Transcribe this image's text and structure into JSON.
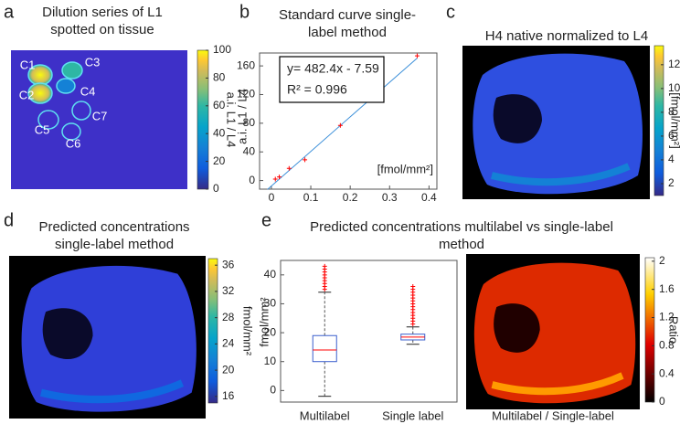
{
  "chart_data": [
    {
      "type": "image",
      "letter": "a",
      "title": [
        "Dilution series of L1",
        "spotted on tissue"
      ],
      "spot_labels": [
        "C1",
        "C3",
        "C4",
        "C2",
        "C7",
        "C5",
        "C6"
      ],
      "colorbar": {
        "colormap": "parula",
        "lim": [
          0,
          100
        ],
        "ticks": [
          0,
          20,
          40,
          60,
          80,
          100
        ],
        "label": "a.i. L1 / L4"
      }
    },
    {
      "type": "scatter",
      "letter": "b",
      "title": [
        "Standard curve single-",
        "label method"
      ],
      "x": [
        0.01,
        0.02,
        0.045,
        0.085,
        0.175,
        0.37
      ],
      "values": [
        2,
        5,
        17,
        29,
        77,
        174
      ],
      "color": "#ff0000",
      "fit_x": [
        -0.01,
        0.37
      ],
      "fit_y": [
        -12.4,
        170.9
      ],
      "fit_color": "#3b8fd9",
      "equation": "y= 482.4x - 7.59",
      "r2": "R² = 0.996",
      "ylabel": "a.i. L1 / L4",
      "xlabel": "[fmol/mm²]",
      "xlim": [
        -0.03,
        0.42
      ],
      "xticks": [
        0,
        0.1,
        0.2,
        0.3,
        0.4
      ],
      "ylim": [
        -12,
        178
      ],
      "yticks": [
        0,
        40,
        80,
        120,
        160
      ]
    },
    {
      "type": "image",
      "letter": "c",
      "title": [
        "H4 native normalized to L4"
      ],
      "colorbar": {
        "colormap": "parula",
        "lim": [
          1,
          13.6
        ],
        "ticks": [
          2,
          4,
          6,
          8,
          10,
          12
        ],
        "label": "[fmol/mm²]"
      }
    },
    {
      "type": "image",
      "letter": "d",
      "title": [
        "Predicted concentrations",
        "single-label method"
      ],
      "colorbar": {
        "colormap": "parula",
        "lim": [
          15,
          37
        ],
        "ticks": [
          16,
          20,
          24,
          28,
          32,
          36
        ],
        "label": "fmol/mm²"
      }
    },
    {
      "type": "boxplot",
      "letter": "e",
      "title": [
        "Predicted concentrations multilabel vs single-label",
        "method"
      ],
      "categories": [
        "Multilabel",
        "Single label"
      ],
      "ylabel": "fmol/mm²",
      "ylim": [
        -4,
        45
      ],
      "yticks": [
        0,
        10,
        20,
        30,
        40
      ],
      "box_color": "#3a5fcd",
      "median_color": "#ff0000",
      "boxes": [
        {
          "whislo": -2,
          "q1": 10,
          "med": 14,
          "q3": 19,
          "whishi": 34,
          "fliers": [
            35,
            36,
            37,
            38,
            39,
            40,
            41,
            42,
            43
          ]
        },
        {
          "whislo": 16,
          "q1": 17.5,
          "med": 18.5,
          "q3": 19.5,
          "whishi": 22,
          "fliers": [
            23,
            24,
            25,
            26,
            27,
            28,
            29,
            30,
            31,
            32,
            33,
            34,
            35,
            36
          ]
        }
      ]
    },
    {
      "type": "image",
      "caption": "Multilabel / Single-label",
      "colorbar": {
        "colormap": "hot",
        "lim": [
          0,
          2.05
        ],
        "ticks": [
          0,
          0.4,
          0.8,
          1.2,
          1.6,
          2
        ],
        "label": "Ratio"
      }
    }
  ]
}
